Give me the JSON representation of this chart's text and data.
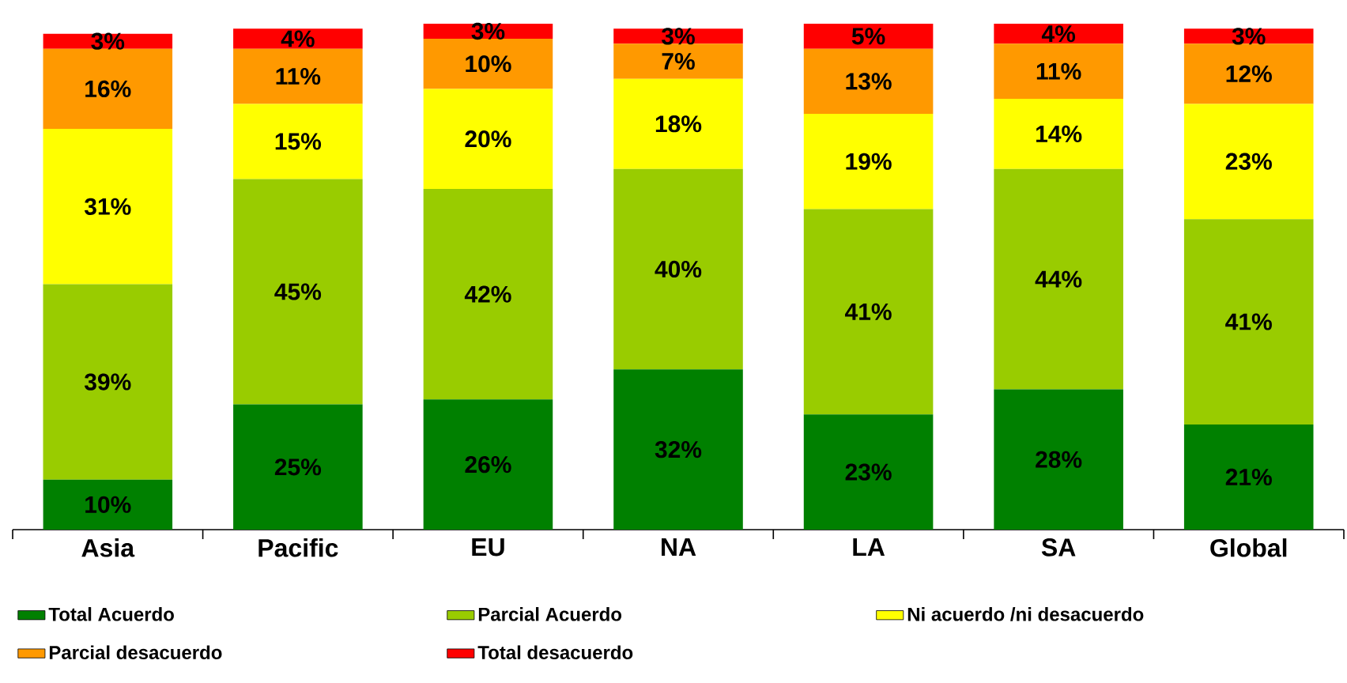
{
  "chart_data": {
    "type": "bar",
    "stacked": true,
    "legend": "bottom",
    "categories": [
      "Asia",
      "Pacific",
      "EU",
      "NA",
      "LA",
      "SA",
      "Global"
    ],
    "series": [
      {
        "name": "Total Acuerdo",
        "color": "#008000",
        "values": [
          10,
          25,
          26,
          32,
          23,
          28,
          21
        ],
        "value_labels": [
          "10%",
          "25%",
          "26%",
          "32%",
          "23%",
          "28%",
          "21%"
        ]
      },
      {
        "name": "Parcial Acuerdo",
        "color": "#99cc00",
        "values": [
          39,
          45,
          42,
          40,
          41,
          44,
          41
        ],
        "value_labels": [
          "39%",
          "45%",
          "42%",
          "40%",
          "41%",
          "44%",
          "41%"
        ]
      },
      {
        "name": "Ni acuerdo /ni desacuerdo",
        "color": "#ffff00",
        "values": [
          31,
          15,
          20,
          18,
          19,
          14,
          23
        ],
        "value_labels": [
          "31%",
          "15%",
          "20%",
          "18%",
          "19%",
          "14%",
          "23%"
        ]
      },
      {
        "name": "Parcial desacuerdo",
        "color": "#ff9900",
        "values": [
          16,
          11,
          10,
          7,
          13,
          11,
          12
        ],
        "value_labels": [
          "16%",
          "11%",
          "10%",
          "7%",
          "13%",
          "11%",
          "12%"
        ]
      },
      {
        "name": "Total desacuerdo",
        "color": "#ff0000",
        "values": [
          3,
          4,
          3,
          3,
          5,
          4,
          3
        ],
        "value_labels": [
          "3%",
          "4%",
          "3%",
          "3%",
          "5%",
          "4%",
          "3%"
        ]
      }
    ]
  }
}
